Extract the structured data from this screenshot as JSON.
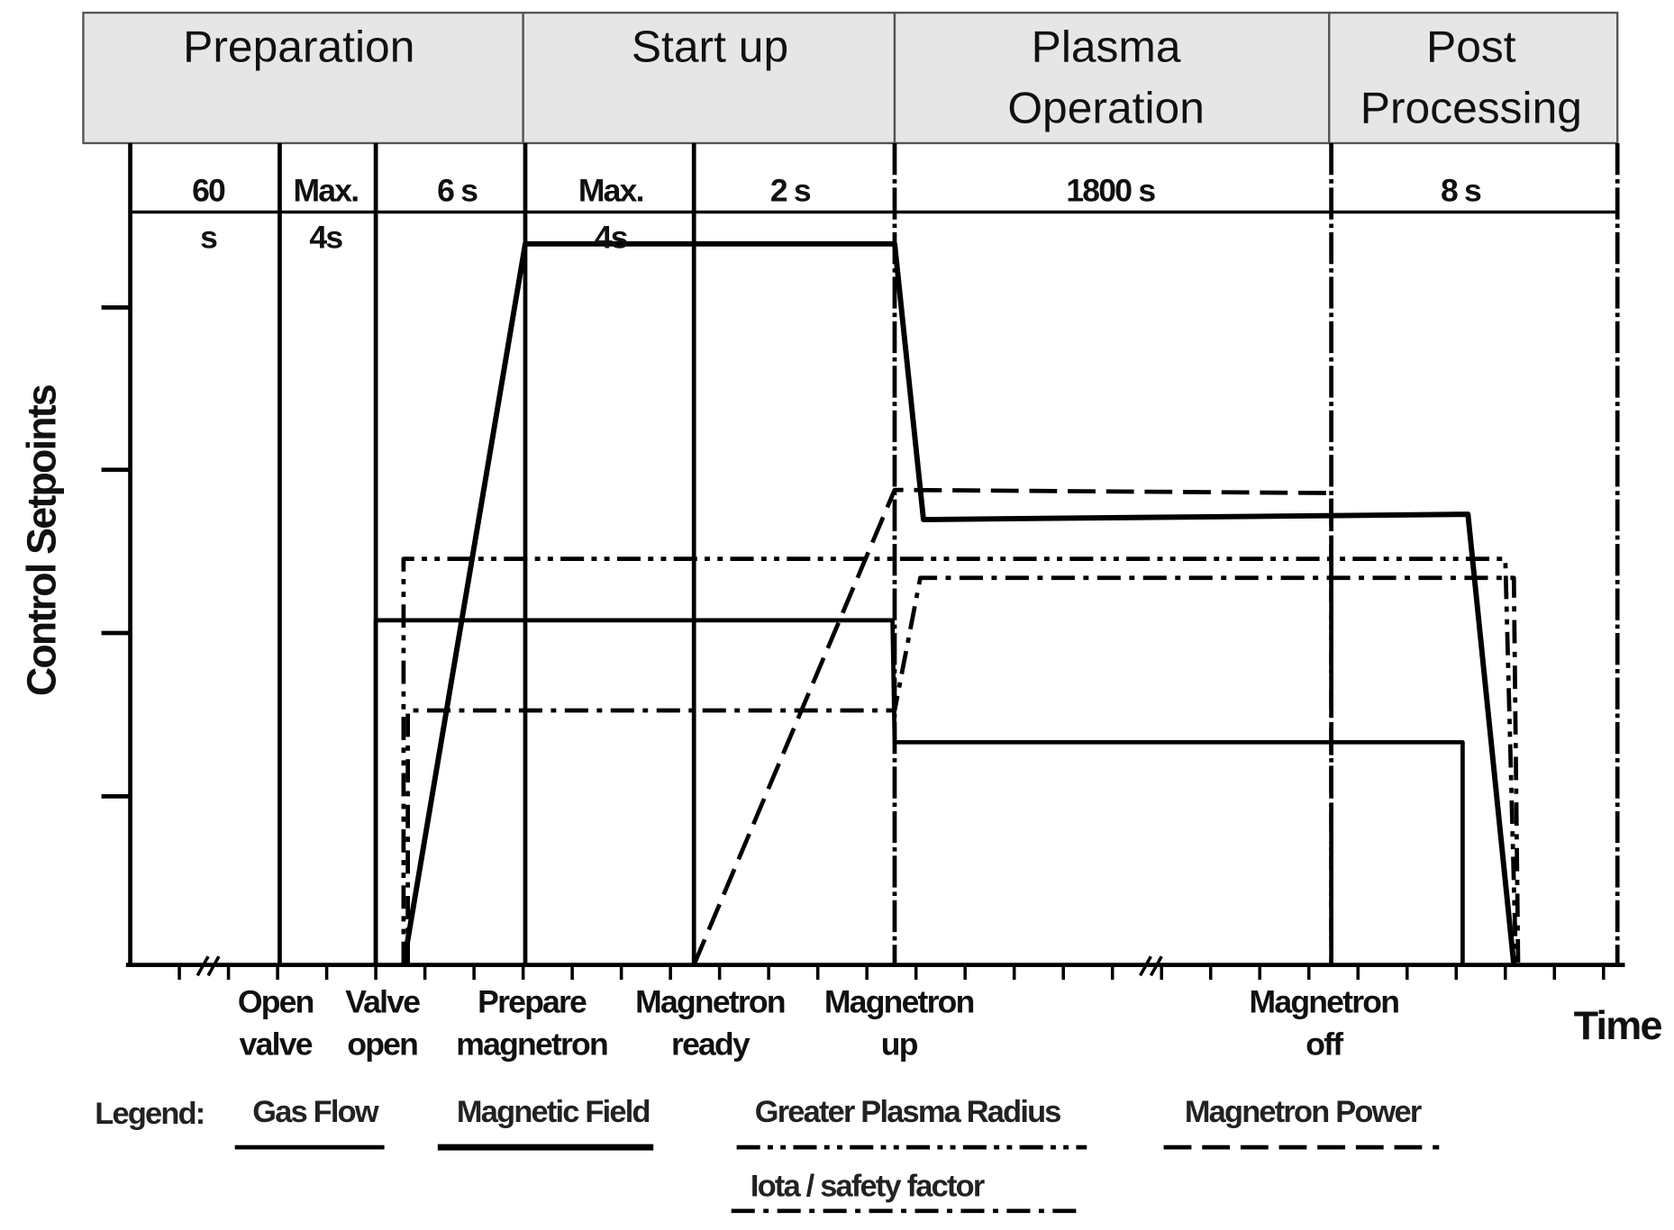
{
  "phases": [
    [
      "Preparation"
    ],
    [
      "Start up"
    ],
    [
      "Plasma",
      "Operation"
    ],
    [
      "Post",
      "Processing"
    ]
  ],
  "durations": [
    [
      "60",
      "s"
    ],
    [
      "Max.",
      "4s"
    ],
    [
      "6 s"
    ],
    [
      "Max.",
      "4s"
    ],
    [
      "2 s"
    ],
    [
      "1800 s"
    ],
    [
      "8 s"
    ]
  ],
  "events": [
    [
      "Open",
      "valve"
    ],
    [
      "Valve",
      "open"
    ],
    [
      "Prepare",
      "magnetron"
    ],
    [
      "Magnetron",
      "ready"
    ],
    [
      "Magnetron",
      "up"
    ],
    [
      "Magnetron",
      "off"
    ]
  ],
  "y_axis_label": "Control Setpoints",
  "x_axis_label": "Time",
  "legend": {
    "title": "Legend:",
    "items": [
      "Gas Flow",
      "Magnetic Field",
      "Greater Plasma Radius",
      "Magnetron Power",
      "Iota / safety factor"
    ]
  }
}
